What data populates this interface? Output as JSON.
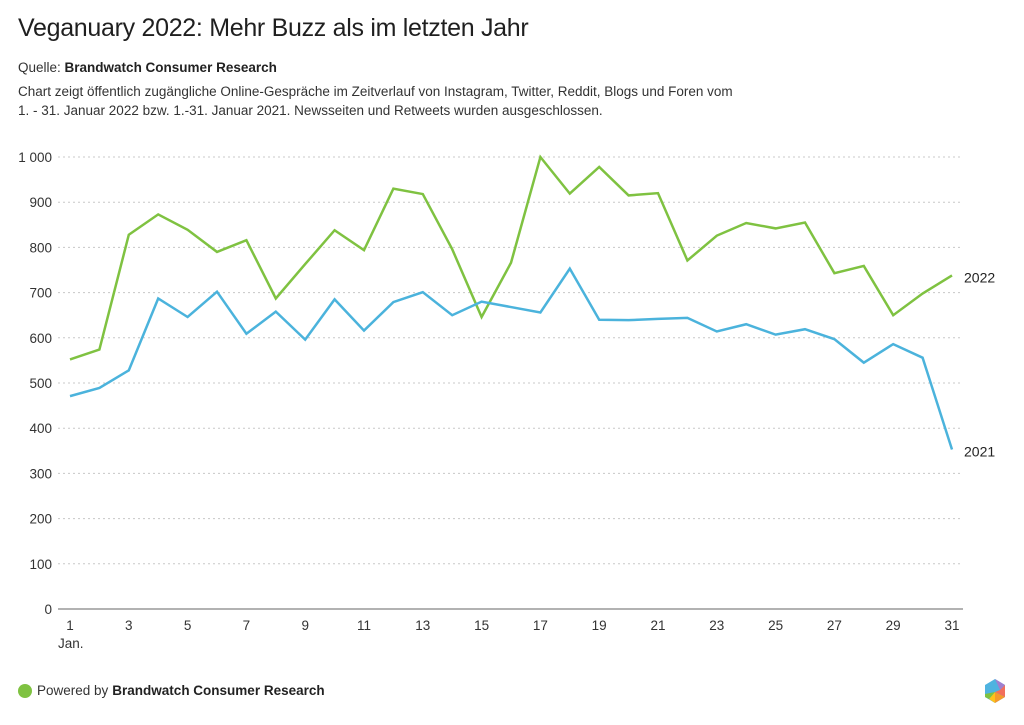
{
  "title": "Veganuary 2022: Mehr Buzz als im letzten Jahr",
  "source_label": "Quelle:",
  "source_name": "Brandwatch Consumer Research",
  "description_line1": "Chart zeigt öffentlich zugängliche Online-Gespräche im Zeitverlauf von Instagram, Twitter, Reddit, Blogs und Foren vom",
  "description_line2": "1. - 31. Januar 2022 bzw. 1.-31. Januar 2021. Newsseiten und Retweets wurden ausgeschlossen.",
  "footer": {
    "powered_by": "Powered by",
    "brand": "Brandwatch Consumer Research",
    "dot_color": "#7fc241"
  },
  "chart_data": {
    "type": "line",
    "title": "Veganuary 2022: Mehr Buzz als im letzten Jahr",
    "xlabel": "",
    "ylabel": "",
    "x": [
      1,
      2,
      3,
      4,
      5,
      6,
      7,
      8,
      9,
      10,
      11,
      12,
      13,
      14,
      15,
      16,
      17,
      18,
      19,
      20,
      21,
      22,
      23,
      24,
      25,
      26,
      27,
      28,
      29,
      30,
      31
    ],
    "x_ticks": [
      1,
      3,
      5,
      7,
      9,
      11,
      13,
      15,
      17,
      19,
      21,
      23,
      25,
      27,
      29,
      31
    ],
    "x_tick_labels": [
      "1",
      "3",
      "5",
      "7",
      "9",
      "11",
      "13",
      "15",
      "17",
      "19",
      "21",
      "23",
      "25",
      "27",
      "29",
      "31"
    ],
    "x_sublabel": "Jan.",
    "xlim": [
      1,
      31
    ],
    "ylim": [
      0,
      1000
    ],
    "y_ticks": [
      0,
      100,
      200,
      300,
      400,
      500,
      600,
      700,
      800,
      900,
      1000
    ],
    "y_tick_labels": [
      "0",
      "100",
      "200",
      "300",
      "400",
      "500",
      "600",
      "700",
      "800",
      "900",
      "1 000"
    ],
    "grid": true,
    "legend": "inline-right",
    "series": [
      {
        "name": "2022",
        "color": "#7fc241",
        "values": [
          552,
          574,
          828,
          873,
          839,
          790,
          816,
          687,
          763,
          838,
          794,
          930,
          918,
          796,
          646,
          766,
          1000,
          919,
          978,
          915,
          920,
          771,
          826,
          854,
          842,
          855,
          743,
          759,
          650,
          698,
          738
        ]
      },
      {
        "name": "2021",
        "color": "#4bb3dc",
        "values": [
          471,
          489,
          528,
          687,
          646,
          702,
          609,
          658,
          596,
          685,
          616,
          679,
          701,
          650,
          680,
          668,
          656,
          753,
          640,
          639,
          642,
          644,
          614,
          630,
          607,
          619,
          597,
          545,
          586,
          556,
          353
        ]
      }
    ]
  }
}
